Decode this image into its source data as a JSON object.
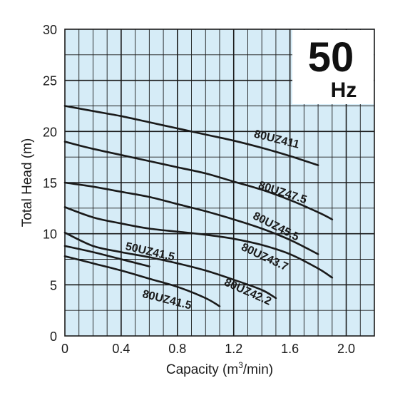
{
  "chart_data": {
    "type": "line",
    "title": "",
    "badge": {
      "value": "50",
      "unit": "Hz"
    },
    "xlabel": "Capacity (m",
    "xlabel_sup": "3",
    "xlabel_tail": "/min)",
    "ylabel": "Total Head (m)",
    "xlim": [
      0,
      2.2
    ],
    "ylim": [
      0,
      30
    ],
    "xticks": [
      0,
      0.4,
      0.8,
      1.2,
      1.6,
      2.0
    ],
    "xtick_labels": [
      "0",
      "0.4",
      "0.8",
      "1.2",
      "1.6",
      "2.0"
    ],
    "yticks": [
      0,
      5,
      10,
      15,
      20,
      25,
      30
    ],
    "ytick_labels": [
      "0",
      "5",
      "10",
      "15",
      "20",
      "25",
      "30"
    ],
    "grid": true,
    "colors": {
      "background": "#d6ecf7",
      "grid": "#1a1a1a",
      "curve": "#1a1a1a"
    },
    "series": [
      {
        "name": "80UZ411",
        "x": [
          0,
          0.2,
          0.4,
          0.6,
          0.8,
          1.0,
          1.2,
          1.4,
          1.6,
          1.8
        ],
        "y": [
          22.5,
          22.0,
          21.5,
          20.9,
          20.3,
          19.7,
          19.1,
          18.4,
          17.6,
          16.7
        ]
      },
      {
        "name": "80UZ47.5",
        "x": [
          0,
          0.2,
          0.4,
          0.6,
          0.8,
          1.0,
          1.2,
          1.4,
          1.6,
          1.8,
          1.9
        ],
        "y": [
          19.0,
          18.3,
          17.7,
          17.1,
          16.5,
          15.9,
          15.1,
          14.3,
          13.3,
          12.1,
          11.4
        ]
      },
      {
        "name": "80UZ45.5",
        "x": [
          0,
          0.2,
          0.4,
          0.6,
          0.8,
          1.0,
          1.2,
          1.4,
          1.6,
          1.8
        ],
        "y": [
          15.0,
          14.6,
          14.1,
          13.6,
          12.9,
          12.2,
          11.4,
          10.5,
          9.4,
          8.0
        ]
      },
      {
        "name": "80UZ43.7",
        "x": [
          0,
          0.2,
          0.4,
          0.6,
          0.8,
          1.0,
          1.2,
          1.4,
          1.6,
          1.8,
          1.9
        ],
        "y": [
          12.6,
          11.6,
          11.0,
          10.5,
          10.2,
          9.9,
          9.5,
          8.9,
          8.0,
          6.6,
          5.7
        ]
      },
      {
        "name": "80UZ42.2",
        "x": [
          0,
          0.2,
          0.4,
          0.6,
          0.8,
          1.0,
          1.2,
          1.4,
          1.5
        ],
        "y": [
          10.1,
          8.8,
          8.2,
          7.7,
          7.1,
          6.4,
          5.5,
          4.5,
          3.7
        ]
      },
      {
        "name": "50UZ41.5",
        "x": [
          0,
          0.2,
          0.4,
          0.6
        ],
        "y": [
          8.8,
          8.2,
          7.5,
          6.8
        ]
      },
      {
        "name": "80UZ41.5",
        "x": [
          0,
          0.2,
          0.4,
          0.6,
          0.8,
          1.0,
          1.1
        ],
        "y": [
          7.8,
          7.1,
          6.4,
          5.6,
          4.8,
          3.7,
          2.9
        ]
      }
    ],
    "labels": [
      {
        "series": "80UZ411",
        "text": "80UZ411",
        "x": 1.5,
        "y": 18.9,
        "angle": 14
      },
      {
        "series": "80UZ47.5",
        "text": "80UZ47.5",
        "x": 1.54,
        "y": 13.7,
        "angle": 18
      },
      {
        "series": "80UZ45.5",
        "text": "80UZ45.5",
        "x": 1.49,
        "y": 10.4,
        "angle": 27
      },
      {
        "series": "80UZ43.7",
        "text": "80UZ43.7",
        "x": 1.41,
        "y": 7.4,
        "angle": 25
      },
      {
        "series": "80UZ42.2",
        "text": "80UZ42.2",
        "x": 1.29,
        "y": 4.0,
        "angle": 24
      },
      {
        "series": "50UZ41.5",
        "text": "50UZ41.5",
        "x": 0.6,
        "y": 7.9,
        "angle": 13
      },
      {
        "series": "80UZ41.5",
        "text": "80UZ41.5",
        "x": 0.72,
        "y": 3.2,
        "angle": 14
      }
    ]
  }
}
